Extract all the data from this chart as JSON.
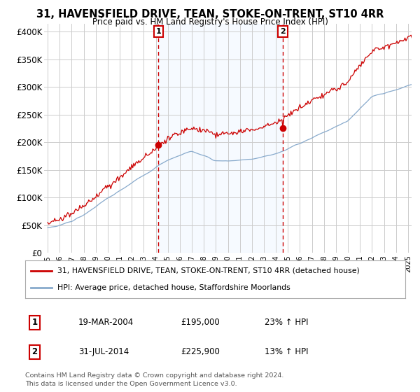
{
  "title1": "31, HAVENSFIELD DRIVE, TEAN, STOKE-ON-TRENT, ST10 4RR",
  "title2": "Price paid vs. HM Land Registry's House Price Index (HPI)",
  "ylabel_ticks": [
    "£0",
    "£50K",
    "£100K",
    "£150K",
    "£200K",
    "£250K",
    "£300K",
    "£350K",
    "£400K"
  ],
  "ytick_values": [
    0,
    50000,
    100000,
    150000,
    200000,
    250000,
    300000,
    350000,
    400000
  ],
  "ylim": [
    0,
    415000
  ],
  "legend_line1": "31, HAVENSFIELD DRIVE, TEAN, STOKE-ON-TRENT, ST10 4RR (detached house)",
  "legend_line2": "HPI: Average price, detached house, Staffordshire Moorlands",
  "sale1_label": "1",
  "sale1_date": "19-MAR-2004",
  "sale1_price": "£195,000",
  "sale1_pct": "23% ↑ HPI",
  "sale2_label": "2",
  "sale2_date": "31-JUL-2014",
  "sale2_price": "£225,900",
  "sale2_pct": "13% ↑ HPI",
  "footer": "Contains HM Land Registry data © Crown copyright and database right 2024.\nThis data is licensed under the Open Government Licence v3.0.",
  "sale1_year": 2004.22,
  "sale1_value": 195000,
  "sale2_year": 2014.58,
  "sale2_value": 225900,
  "line1_color": "#cc0000",
  "line2_color": "#88aacc",
  "shade_color": "#ddeeff",
  "background_color": "#ffffff",
  "grid_color": "#cccccc",
  "vline_color": "#cc0000"
}
